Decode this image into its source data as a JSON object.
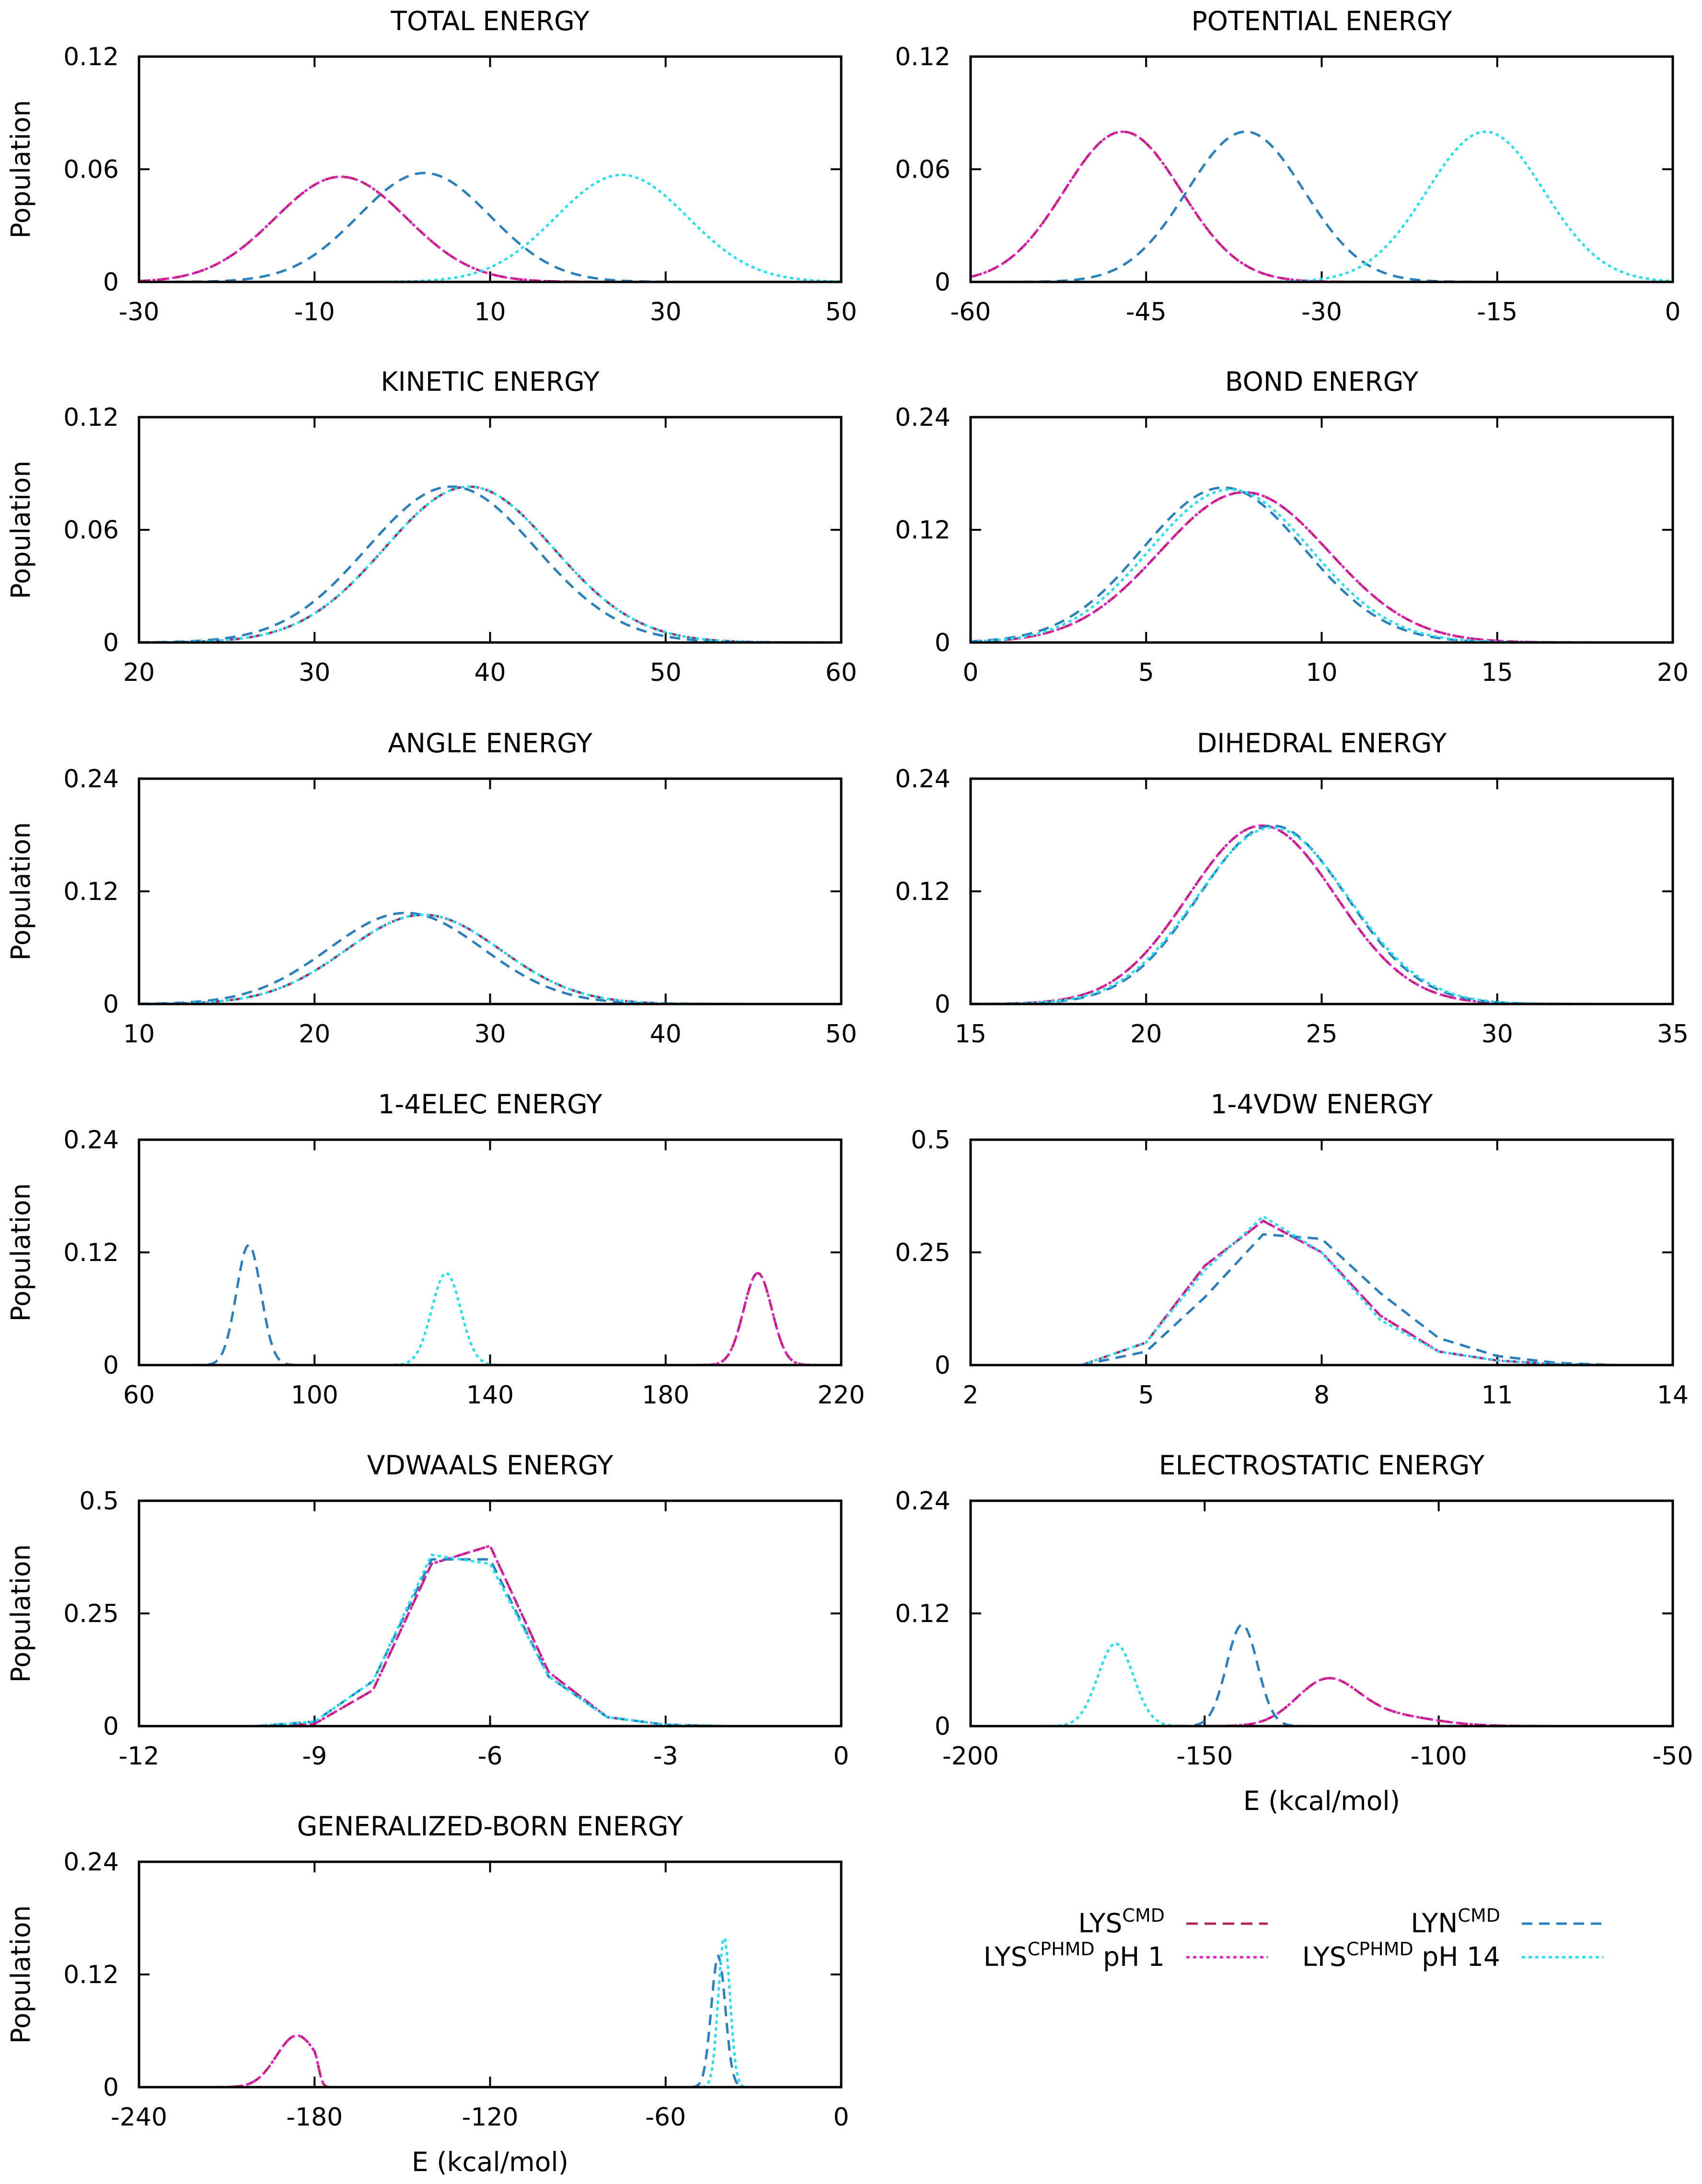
{
  "series_styles": [
    {
      "name": "LYS",
      "sup": "CMD",
      "suffix": "",
      "color": "#b5245c",
      "dash": "24,14"
    },
    {
      "name": "LYS",
      "sup": "CPHMD",
      "suffix": " pH 1",
      "color": "#e61ec8",
      "dash": "7,7"
    },
    {
      "name": "LYN",
      "sup": "CMD",
      "suffix": "",
      "color": "#2a7fbf",
      "dash": "22,14"
    },
    {
      "name": "LYS",
      "sup": "CPHMD",
      "suffix": " pH 14",
      "color": "#22e0f0",
      "dash": "7,7"
    }
  ],
  "chart_data": [
    {
      "type": "line",
      "title": "TOTAL ENERGY",
      "ylabel": "Population",
      "xlabel": "",
      "xlim": [
        -30,
        50
      ],
      "ylim": [
        0,
        0.12
      ],
      "xticks": [
        "-30",
        "-10",
        "10",
        "30",
        "50"
      ],
      "yticks": [
        "0",
        "0.06",
        "0.12"
      ],
      "series": [
        {
          "name": "LYS CMD",
          "gauss": [
            [
              -7,
              7.5,
              0.056
            ]
          ]
        },
        {
          "name": "LYS CPHMD pH 1",
          "gauss": [
            [
              -7,
              7.5,
              0.056
            ]
          ]
        },
        {
          "name": "LYN CMD",
          "gauss": [
            [
              2.5,
              7.5,
              0.058
            ]
          ]
        },
        {
          "name": "LYS CPHMD pH 14",
          "gauss": [
            [
              25,
              7.5,
              0.057
            ]
          ]
        }
      ]
    },
    {
      "type": "line",
      "title": "POTENTIAL ENERGY",
      "ylabel": "",
      "xlabel": "",
      "xlim": [
        -60,
        0
      ],
      "ylim": [
        0,
        0.12
      ],
      "xticks": [
        "-60",
        "-45",
        "-30",
        "-15",
        "0"
      ],
      "yticks": [
        "0",
        "0.06",
        "0.12"
      ],
      "series": [
        {
          "name": "LYS CMD",
          "gauss": [
            [
              -47,
              5,
              0.08
            ]
          ]
        },
        {
          "name": "LYS CPHMD pH 1",
          "gauss": [
            [
              -47,
              5,
              0.08
            ]
          ]
        },
        {
          "name": "LYN CMD",
          "gauss": [
            [
              -36.5,
              5,
              0.08
            ]
          ]
        },
        {
          "name": "LYS CPHMD pH 14",
          "gauss": [
            [
              -16,
              5,
              0.08
            ]
          ]
        }
      ]
    },
    {
      "type": "line",
      "title": "KINETIC ENERGY",
      "ylabel": "Population",
      "xlabel": "",
      "xlim": [
        20,
        60
      ],
      "ylim": [
        0,
        0.12
      ],
      "xticks": [
        "20",
        "30",
        "40",
        "50",
        "60"
      ],
      "yticks": [
        "0",
        "0.06",
        "0.12"
      ],
      "series": [
        {
          "name": "LYS CMD",
          "gauss": [
            [
              38.8,
              4.8,
              0.083
            ]
          ]
        },
        {
          "name": "LYS CPHMD pH 1",
          "gauss": [
            [
              38.8,
              4.8,
              0.083
            ]
          ]
        },
        {
          "name": "LYN CMD",
          "gauss": [
            [
              37.8,
              4.8,
              0.083
            ]
          ]
        },
        {
          "name": "LYS CPHMD pH 14",
          "gauss": [
            [
              38.8,
              4.8,
              0.083
            ]
          ]
        }
      ]
    },
    {
      "type": "line",
      "title": "BOND ENERGY",
      "ylabel": "",
      "xlabel": "",
      "xlim": [
        0,
        20
      ],
      "ylim": [
        0,
        0.24
      ],
      "xticks": [
        "0",
        "5",
        "10",
        "15",
        "20"
      ],
      "yticks": [
        "0",
        "0.12",
        "0.24"
      ],
      "series": [
        {
          "name": "LYS CMD",
          "gauss": [
            [
              7.8,
              2.4,
              0.16
            ]
          ]
        },
        {
          "name": "LYS CPHMD pH 1",
          "gauss": [
            [
              7.8,
              2.4,
              0.16
            ]
          ]
        },
        {
          "name": "LYN CMD",
          "gauss": [
            [
              7.2,
              2.3,
              0.165
            ]
          ]
        },
        {
          "name": "LYS CPHMD pH 14",
          "gauss": [
            [
              7.4,
              2.3,
              0.163
            ]
          ]
        }
      ]
    },
    {
      "type": "line",
      "title": "ANGLE ENERGY",
      "ylabel": "Population",
      "xlabel": "",
      "xlim": [
        10,
        50
      ],
      "ylim": [
        0,
        0.24
      ],
      "xticks": [
        "10",
        "20",
        "30",
        "40",
        "50"
      ],
      "yticks": [
        "0",
        "0.12",
        "0.24"
      ],
      "series": [
        {
          "name": "LYS CMD",
          "gauss": [
            [
              26.2,
              4.4,
              0.095
            ]
          ]
        },
        {
          "name": "LYS CPHMD pH 1",
          "gauss": [
            [
              26.2,
              4.4,
              0.095
            ]
          ]
        },
        {
          "name": "LYN CMD",
          "gauss": [
            [
              25.2,
              4.4,
              0.097
            ]
          ]
        },
        {
          "name": "LYS CPHMD pH 14",
          "gauss": [
            [
              26.2,
              4.4,
              0.095
            ]
          ]
        }
      ]
    },
    {
      "type": "line",
      "title": "DIHEDRAL ENERGY",
      "ylabel": "",
      "xlabel": "",
      "xlim": [
        15,
        35
      ],
      "ylim": [
        0,
        0.24
      ],
      "xticks": [
        "15",
        "20",
        "25",
        "30",
        "35"
      ],
      "yticks": [
        "0",
        "0.12",
        "0.24"
      ],
      "series": [
        {
          "name": "LYS CMD",
          "gauss": [
            [
              23.3,
              2.1,
              0.19
            ]
          ]
        },
        {
          "name": "LYS CPHMD pH 1",
          "gauss": [
            [
              23.3,
              2.1,
              0.19
            ]
          ]
        },
        {
          "name": "LYN CMD",
          "gauss": [
            [
              23.6,
              2.1,
              0.19
            ]
          ]
        },
        {
          "name": "LYS CPHMD pH 14",
          "gauss": [
            [
              23.6,
              2.15,
              0.188
            ]
          ]
        }
      ]
    },
    {
      "type": "line",
      "title": "1-4ELEC ENERGY",
      "ylabel": "Population",
      "xlabel": "",
      "xlim": [
        60,
        220
      ],
      "ylim": [
        0,
        0.24
      ],
      "xticks": [
        "60",
        "100",
        "140",
        "180",
        "220"
      ],
      "yticks": [
        "0",
        "0.12",
        "0.24"
      ],
      "series": [
        {
          "name": "LYS CMD",
          "gauss": [
            [
              201,
              3.2,
              0.098
            ]
          ]
        },
        {
          "name": "LYS CPHMD pH 1",
          "gauss": [
            [
              201,
              3.2,
              0.098
            ]
          ]
        },
        {
          "name": "LYN CMD",
          "gauss": [
            [
              85,
              2.8,
              0.128
            ]
          ]
        },
        {
          "name": "LYS CPHMD pH 14",
          "gauss": [
            [
              130,
              3.3,
              0.098
            ]
          ]
        }
      ]
    },
    {
      "type": "line",
      "title": "1-4VDW ENERGY",
      "ylabel": "",
      "xlabel": "",
      "xlim": [
        2,
        14
      ],
      "ylim": [
        0,
        0.5
      ],
      "xticks": [
        "2",
        "5",
        "8",
        "11",
        "14"
      ],
      "yticks": [
        "0",
        "0.25",
        "0.5"
      ],
      "series": [
        {
          "name": "LYS CMD",
          "x": [
            3.9,
            5,
            6,
            7,
            8,
            9,
            10,
            11,
            12,
            13
          ],
          "y": [
            0,
            0.05,
            0.22,
            0.32,
            0.25,
            0.11,
            0.03,
            0.01,
            0.002,
            0
          ]
        },
        {
          "name": "LYS CPHMD pH 1",
          "x": [
            3.9,
            5,
            6,
            7,
            8,
            9,
            10,
            11,
            12,
            13
          ],
          "y": [
            0,
            0.05,
            0.22,
            0.32,
            0.25,
            0.11,
            0.03,
            0.01,
            0.002,
            0
          ]
        },
        {
          "name": "LYN CMD",
          "x": [
            3.9,
            5,
            6,
            7,
            8,
            9,
            10,
            11,
            12,
            13
          ],
          "y": [
            0,
            0.03,
            0.15,
            0.29,
            0.28,
            0.16,
            0.06,
            0.02,
            0.005,
            0
          ]
        },
        {
          "name": "LYS CPHMD pH 14",
          "x": [
            3.9,
            5,
            6,
            7,
            8,
            9,
            10,
            11,
            12,
            13
          ],
          "y": [
            0,
            0.05,
            0.21,
            0.33,
            0.25,
            0.1,
            0.03,
            0.01,
            0.002,
            0
          ]
        }
      ]
    },
    {
      "type": "line",
      "title": "VDWAALS ENERGY",
      "ylabel": "Population",
      "xlabel": "",
      "xlim": [
        -12,
        0
      ],
      "ylim": [
        0,
        0.5
      ],
      "xticks": [
        "-12",
        "-9",
        "-6",
        "-3",
        "0"
      ],
      "yticks": [
        "0",
        "0.25",
        "0.5"
      ],
      "series": [
        {
          "name": "LYS CMD",
          "x": [
            -10,
            -9,
            -8,
            -7,
            -6,
            -5,
            -4,
            -3,
            -2
          ],
          "y": [
            0,
            0.005,
            0.08,
            0.36,
            0.4,
            0.12,
            0.02,
            0.003,
            0
          ]
        },
        {
          "name": "LYS CPHMD pH 1",
          "x": [
            -10,
            -9,
            -8,
            -7,
            -6,
            -5,
            -4,
            -3,
            -2
          ],
          "y": [
            0,
            0.005,
            0.08,
            0.36,
            0.4,
            0.12,
            0.02,
            0.003,
            0
          ]
        },
        {
          "name": "LYN CMD",
          "x": [
            -10,
            -9,
            -8,
            -7,
            -6,
            -5,
            -4,
            -3,
            -2
          ],
          "y": [
            0,
            0.01,
            0.1,
            0.37,
            0.37,
            0.11,
            0.02,
            0.003,
            0
          ]
        },
        {
          "name": "LYS CPHMD pH 14",
          "x": [
            -10,
            -9,
            -8,
            -7,
            -6,
            -5,
            -4,
            -3,
            -2
          ],
          "y": [
            0,
            0.01,
            0.1,
            0.38,
            0.36,
            0.11,
            0.02,
            0.003,
            0
          ]
        }
      ]
    },
    {
      "type": "line",
      "title": "ELECTROSTATIC ENERGY",
      "ylabel": "",
      "xlabel": "E (kcal/mol)",
      "xlim": [
        -200,
        -50
      ],
      "ylim": [
        0,
        0.24
      ],
      "xticks": [
        "-200",
        "-150",
        "-100",
        "-50"
      ],
      "yticks": [
        "0",
        "0.12",
        "0.24"
      ],
      "series": [
        {
          "name": "LYS CMD",
          "gauss": [
            [
              -124,
              6.5,
              0.045
            ],
            [
              -112,
              10,
              0.012
            ]
          ]
        },
        {
          "name": "LYS CPHMD pH 1",
          "gauss": [
            [
              -124,
              6.5,
              0.045
            ],
            [
              -112,
              10,
              0.012
            ]
          ]
        },
        {
          "name": "LYN CMD",
          "gauss": [
            [
              -142,
              3.3,
              0.108
            ]
          ]
        },
        {
          "name": "LYS CPHMD pH 14",
          "gauss": [
            [
              -169,
              3.8,
              0.088
            ]
          ]
        }
      ]
    },
    {
      "type": "line",
      "title": "GENERALIZED-BORN ENERGY",
      "ylabel": "Population",
      "xlabel": "E (kcal/mol)",
      "xlim": [
        -240,
        0
      ],
      "ylim": [
        0,
        0.24
      ],
      "xticks": [
        "-240",
        "-180",
        "-120",
        "-60",
        "0"
      ],
      "yticks": [
        "0",
        "0.12",
        "0.24"
      ],
      "series": [
        {
          "name": "LYS CMD",
          "gauss": [
            [
              -186,
              7,
              0.055
            ]
          ],
          "cut": -180
        },
        {
          "name": "LYS CPHMD pH 1",
          "gauss": [
            [
              -186,
              7,
              0.055
            ]
          ],
          "cut": -180
        },
        {
          "name": "LYN CMD",
          "gauss": [
            [
              -42,
              2.4,
              0.14
            ]
          ]
        },
        {
          "name": "LYS CPHMD pH 14",
          "gauss": [
            [
              -40,
              2.0,
              0.16
            ]
          ]
        }
      ]
    }
  ]
}
